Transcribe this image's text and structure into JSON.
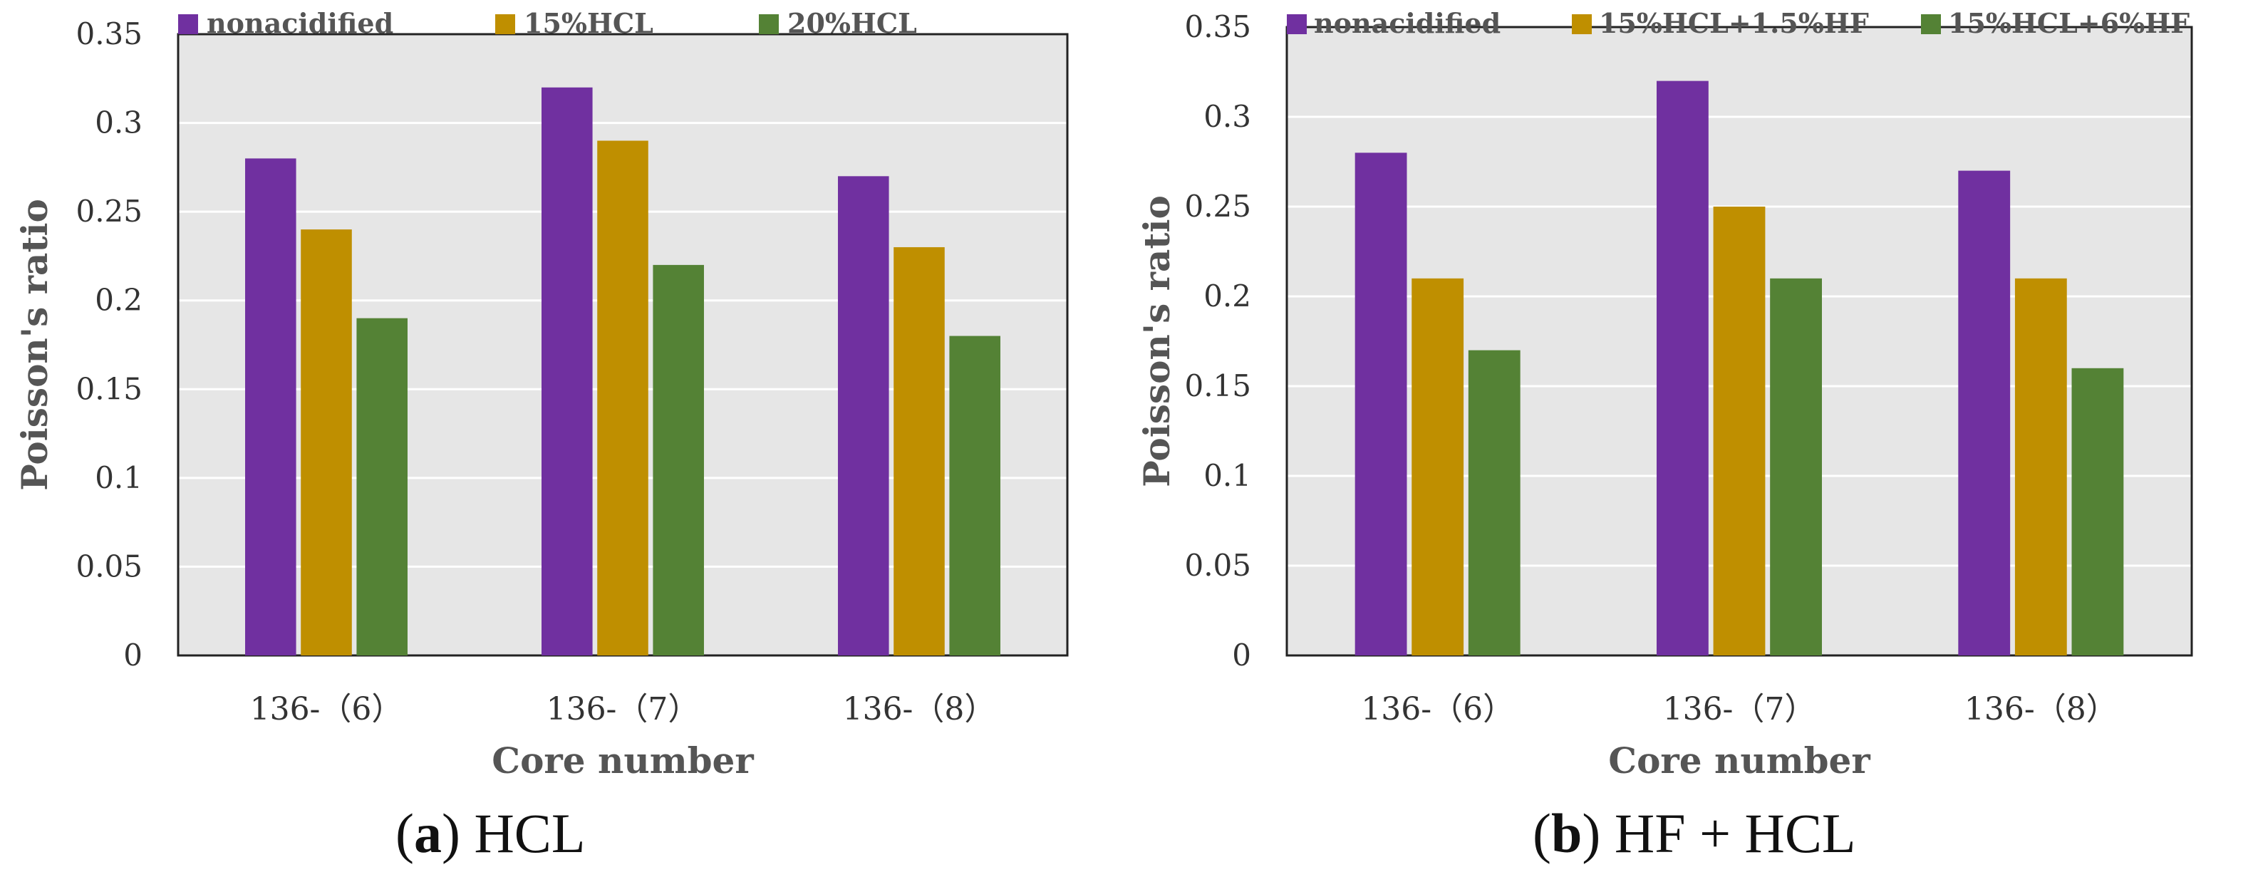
{
  "colors": {
    "nonacidified": "#7030A0",
    "orange": "#BF8F00",
    "green": "#548235",
    "plot_bg": "#E6E6E6",
    "grid": "#FFFFFF"
  },
  "chart_data": [
    {
      "type": "bar",
      "panel_letter": "a",
      "caption": "HCL",
      "title": "",
      "xlabel": "Core number",
      "ylabel": "Poisson's ratio",
      "ylim": [
        0,
        0.35
      ],
      "yticks": [
        "0",
        "0.05",
        "0.1",
        "0.15",
        "0.2",
        "0.25",
        "0.3",
        "0.35"
      ],
      "categories": [
        "136-（6）",
        "136-（7）",
        "136-（8）"
      ],
      "legend_position": "top",
      "series": [
        {
          "name": "nonacidified",
          "color": "#7030A0",
          "values": [
            0.28,
            0.32,
            0.27
          ]
        },
        {
          "name": "15%HCL",
          "color": "#BF8F00",
          "values": [
            0.24,
            0.29,
            0.23
          ]
        },
        {
          "name": "20%HCL",
          "color": "#548235",
          "values": [
            0.19,
            0.22,
            0.18
          ]
        }
      ]
    },
    {
      "type": "bar",
      "panel_letter": "b",
      "caption": "HF + HCL",
      "title": "",
      "xlabel": "Core number",
      "ylabel": "Poisson's ratio",
      "ylim": [
        0,
        0.35
      ],
      "yticks": [
        "0",
        "0.05",
        "0.1",
        "0.15",
        "0.2",
        "0.25",
        "0.3",
        "0.35"
      ],
      "categories": [
        "136-（6）",
        "136-（7）",
        "136-（8）"
      ],
      "legend_position": "top",
      "series": [
        {
          "name": "nonacidified",
          "color": "#7030A0",
          "values": [
            0.28,
            0.32,
            0.27
          ]
        },
        {
          "name": "15%HCL+1.5%HF",
          "color": "#BF8F00",
          "values": [
            0.21,
            0.25,
            0.21
          ]
        },
        {
          "name": "15%HCL+6%HF",
          "color": "#548235",
          "values": [
            0.17,
            0.21,
            0.16
          ]
        }
      ]
    }
  ]
}
